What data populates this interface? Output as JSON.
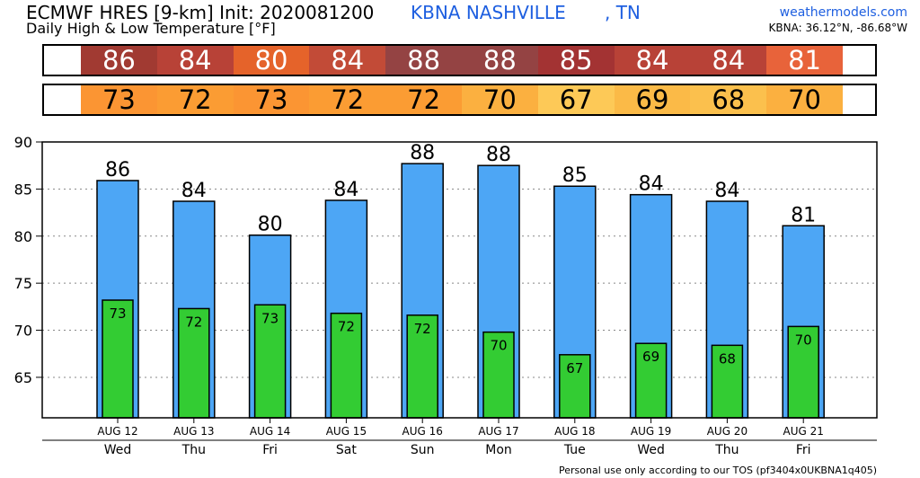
{
  "header": {
    "title": "ECMWF HRES [9-km] Init: 2020081200",
    "station": "KBNA NASHVILLE",
    "state": ", TN",
    "subtitle": "Daily High & Low Temperature [°F]",
    "site": "weathermodels.com",
    "coords": "KBNA: 36.12°N, -86.68°W"
  },
  "high_strip": {
    "values": [
      "86",
      "84",
      "80",
      "84",
      "88",
      "88",
      "85",
      "84",
      "84",
      "81"
    ],
    "colors": [
      "#a13a32",
      "#b84237",
      "#e5632a",
      "#c24b37",
      "#944343",
      "#944343",
      "#a33333",
      "#b84237",
      "#b84237",
      "#e8633a"
    ]
  },
  "low_strip": {
    "values": [
      "73",
      "72",
      "73",
      "72",
      "72",
      "70",
      "67",
      "69",
      "68",
      "70"
    ],
    "colors": [
      "#fb9533",
      "#fb9c33",
      "#fb9533",
      "#fb9c33",
      "#fb9c33",
      "#fbb040",
      "#fdc957",
      "#fbba47",
      "#fbc04d",
      "#fbb040"
    ]
  },
  "chart_data": {
    "type": "bar",
    "categories": [
      "AUG 12",
      "AUG 13",
      "AUG 14",
      "AUG 15",
      "AUG 16",
      "AUG 17",
      "AUG 18",
      "AUG 19",
      "AUG 20",
      "AUG 21"
    ],
    "weekdays": [
      "Wed",
      "Thu",
      "Fri",
      "Sat",
      "Sun",
      "Mon",
      "Tue",
      "Wed",
      "Thu",
      "Fri"
    ],
    "series": [
      {
        "values": [
          85.9,
          83.7,
          80.1,
          83.8,
          87.7,
          87.5,
          85.3,
          84.4,
          83.7,
          81.1
        ],
        "labels": [
          "86",
          "84",
          "80",
          "84",
          "88",
          "88",
          "85",
          "84",
          "84",
          "81"
        ],
        "color": "#4da6f5"
      },
      {
        "values": [
          73.2,
          72.3,
          72.7,
          71.8,
          71.6,
          69.8,
          67.4,
          68.6,
          68.4,
          70.4
        ],
        "labels": [
          "73",
          "72",
          "73",
          "72",
          "72",
          "70",
          "67",
          "69",
          "68",
          "70"
        ],
        "color": "#33cc33"
      }
    ],
    "ylim": [
      60.7,
      90
    ],
    "yticks": [
      65,
      70,
      75,
      80,
      85,
      90
    ],
    "grid": true
  },
  "footer": "Personal use only according to our TOS (pf3404x0UKBNA1q405)"
}
